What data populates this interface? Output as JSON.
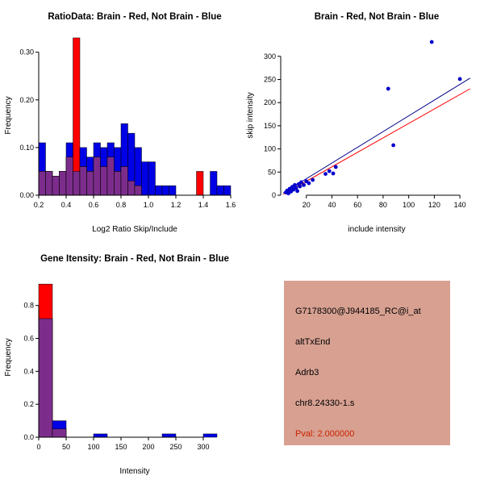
{
  "window": {
    "bg_color": "#ffffff"
  },
  "chart_data": [
    {
      "id": "chart-ratio",
      "type": "histogram",
      "title": "RatioData: Brain - Red, Not Brain - Blue",
      "xlabel": "Log2 Ratio Skip/Include",
      "ylabel": "Frequency",
      "xlim": [
        0.2,
        1.6
      ],
      "ylim": [
        0,
        0.335
      ],
      "xticks": [
        0.2,
        0.4,
        0.6,
        0.8,
        1.0,
        1.2,
        1.4,
        1.6
      ],
      "xtick_labels": [
        "0.2",
        "0.4",
        "0.6",
        "0.8",
        "1.0",
        "1.2",
        "1.4",
        "1.6"
      ],
      "yticks": [
        0,
        0.1,
        0.2,
        0.3
      ],
      "ytick_labels": [
        "0.00",
        "0.10",
        "0.20",
        "0.30"
      ],
      "bin_start": 0.2,
      "bin_width": 0.05,
      "overlap_color": "#7c2d8c",
      "series": [
        {
          "name": "Not Brain",
          "color": "#0000e6",
          "values": [
            0.11,
            0.05,
            0.04,
            0.05,
            0.11,
            0.05,
            0.1,
            0.08,
            0.11,
            0.1,
            0.11,
            0.1,
            0.15,
            0.13,
            0.1,
            0.07,
            0.07,
            0.02,
            0.02,
            0.02,
            0,
            0,
            0,
            0,
            0,
            0.05,
            0.02,
            0.02
          ]
        },
        {
          "name": "Brain",
          "color": "#ff0000",
          "values": [
            0.05,
            0.05,
            0.04,
            0.05,
            0.08,
            0.33,
            0.06,
            0.05,
            0.08,
            0.06,
            0.08,
            0.05,
            0.06,
            0.03,
            0.02,
            0,
            0,
            0,
            0,
            0,
            0,
            0,
            0,
            0.05,
            0,
            0,
            0,
            0
          ]
        }
      ]
    },
    {
      "id": "chart-scatter",
      "type": "scatter",
      "title": "Brain - Red, Not Brain - Blue",
      "xlabel": "include intensity",
      "ylabel": "skip intensity",
      "xlim": [
        0,
        150
      ],
      "ylim": [
        0,
        345
      ],
      "xticks": [
        20,
        40,
        60,
        80,
        100,
        120,
        140
      ],
      "xtick_labels": [
        "20",
        "40",
        "60",
        "80",
        "100",
        "120",
        "140"
      ],
      "yticks": [
        0,
        50,
        100,
        150,
        200,
        250,
        300
      ],
      "ytick_labels": [
        "0",
        "50",
        "100",
        "150",
        "200",
        "250",
        "300"
      ],
      "point_color": "#0000cd",
      "points": [
        [
          4,
          6
        ],
        [
          5,
          10
        ],
        [
          6,
          4
        ],
        [
          7,
          14
        ],
        [
          8,
          8
        ],
        [
          9,
          18
        ],
        [
          10,
          12
        ],
        [
          11,
          22
        ],
        [
          12,
          16
        ],
        [
          13,
          9
        ],
        [
          14,
          24
        ],
        [
          15,
          19
        ],
        [
          16,
          28
        ],
        [
          18,
          22
        ],
        [
          20,
          30
        ],
        [
          22,
          26
        ],
        [
          25,
          33
        ],
        [
          35,
          46
        ],
        [
          38,
          52
        ],
        [
          41,
          47
        ],
        [
          43,
          61
        ],
        [
          84,
          230
        ],
        [
          88,
          108
        ],
        [
          118,
          331
        ],
        [
          140,
          251
        ]
      ],
      "fit_lines": [
        {
          "name": "red",
          "color": "#ff0000",
          "from": [
            2,
            2
          ],
          "to": [
            148,
            230
          ]
        },
        {
          "name": "blue",
          "color": "#00008b",
          "from": [
            2,
            5
          ],
          "to": [
            148,
            253
          ]
        }
      ]
    },
    {
      "id": "chart-gene",
      "type": "histogram",
      "title": "Gene Itensity: Brain - Red, Not Brain - Blue",
      "xlabel": "Intensity",
      "ylabel": "Frequency",
      "xlim": [
        0,
        350
      ],
      "ylim": [
        0,
        0.97
      ],
      "xticks": [
        0,
        50,
        100,
        150,
        200,
        250,
        300
      ],
      "xtick_labels": [
        "0",
        "50",
        "100",
        "150",
        "200",
        "250",
        "300"
      ],
      "yticks": [
        0,
        0.2,
        0.4,
        0.6,
        0.8
      ],
      "ytick_labels": [
        "0.0",
        "0.2",
        "0.4",
        "0.6",
        "0.8"
      ],
      "bin_start": 0,
      "bin_width": 25,
      "overlap_color": "#7c2d8c",
      "series": [
        {
          "name": "Not Brain",
          "color": "#0000e6",
          "values": [
            0.72,
            0.1,
            0,
            0,
            0.02,
            0,
            0,
            0,
            0,
            0.02,
            0,
            0,
            0.02,
            0
          ]
        },
        {
          "name": "Brain",
          "color": "#ff0000",
          "values": [
            0.93,
            0.05,
            0,
            0,
            0,
            0,
            0,
            0,
            0,
            0,
            0,
            0,
            0,
            0
          ]
        }
      ]
    }
  ],
  "info_panel": {
    "bg_color": "#d7a091",
    "probe_id": "G7178300@J944185_RC@i_at",
    "event_type": "altTxEnd",
    "gene": "Adrb3",
    "location": "chr8.24330-1.s",
    "pval": "Pval: 2.000000",
    "pval_color": "#cc2200"
  }
}
